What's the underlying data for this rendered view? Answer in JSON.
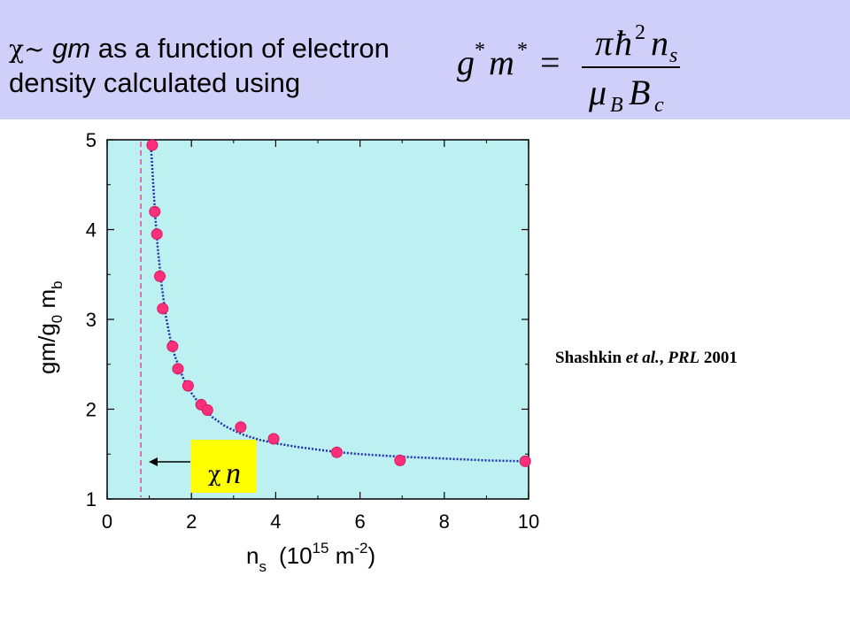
{
  "header": {
    "chi_symbol": "χ",
    "tilde": "~",
    "gm_term": "gm",
    "rest_line1": " as a function of electron",
    "line2": "density calculated using"
  },
  "formula": {
    "lhs": "g*m*",
    "numerator": "πℏ²nₛ",
    "denominator": "μ_B B_c"
  },
  "citation": {
    "authors": "Shashkin ",
    "etal": "et al.",
    "sep": ", ",
    "journal": "PRL",
    "year": " 2001"
  },
  "annotation": {
    "label_n": "n",
    "label_sub": "χ"
  },
  "colors": {
    "plot_bg": "#bdf0f0",
    "marker": "#ff2f7a",
    "fit_line": "#1f2fb0",
    "dashed_line": "#ff3a8c",
    "annotation_bg": "#ffff00",
    "header_bg": "#cfcffa"
  },
  "chart_data": {
    "type": "scatter",
    "xlabel": "n",
    "xlabel_sub": "s",
    "xlabel_units": "(10",
    "xlabel_exp": "15",
    "xlabel_units2": " m",
    "xlabel_exp2": "-2",
    "xlabel_close": ")",
    "ylabel": "gm/g",
    "ylabel_sub0": "0",
    "ylabel_mid": " m",
    "ylabel_subb": "b",
    "xlim": [
      0,
      10
    ],
    "ylim": [
      1,
      5
    ],
    "x_ticks": [
      "0",
      "2",
      "4",
      "6",
      "8",
      "10"
    ],
    "y_ticks": [
      "1",
      "2",
      "3",
      "4",
      "5"
    ],
    "vertical_dashed_x": 0.8,
    "points": {
      "x": [
        1.07,
        1.13,
        1.18,
        1.25,
        1.32,
        1.55,
        1.68,
        1.92,
        2.23,
        2.38,
        3.17,
        3.95,
        5.45,
        6.95,
        9.92
      ],
      "y": [
        4.94,
        4.2,
        3.95,
        3.48,
        3.12,
        2.7,
        2.45,
        2.26,
        2.05,
        1.99,
        1.8,
        1.67,
        1.52,
        1.43,
        1.42
      ]
    },
    "fit_curve": {
      "x": [
        1.02,
        1.05,
        1.1,
        1.15,
        1.2,
        1.3,
        1.4,
        1.5,
        1.6,
        1.8,
        2.0,
        2.2,
        2.5,
        2.8,
        3.2,
        3.6,
        4.0,
        4.5,
        5.0,
        5.5,
        6.0,
        7.0,
        8.0,
        9.0,
        9.95
      ],
      "y": [
        5.0,
        4.85,
        4.45,
        4.1,
        3.8,
        3.35,
        3.02,
        2.78,
        2.6,
        2.35,
        2.18,
        2.05,
        1.91,
        1.81,
        1.72,
        1.66,
        1.62,
        1.58,
        1.55,
        1.52,
        1.5,
        1.47,
        1.45,
        1.43,
        1.42
      ]
    }
  }
}
